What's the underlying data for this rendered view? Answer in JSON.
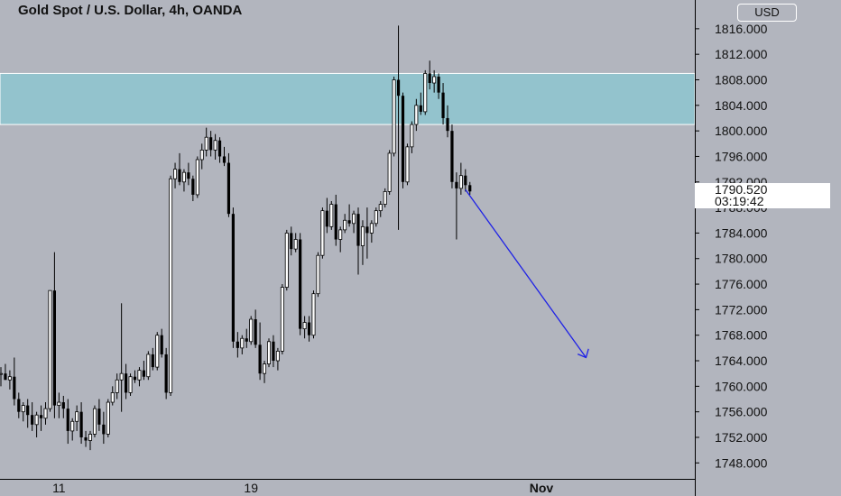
{
  "header": {
    "title": "Gold Spot / U.S. Dollar, 4h, OANDA",
    "currency_button": "USD"
  },
  "last_price": {
    "value": "1790.520",
    "countdown": "03:19:42"
  },
  "colors": {
    "background": "#b2b5be",
    "zone": "#93c3cd",
    "projection": "#1f22e6",
    "candle": "#000000"
  },
  "chart_data": {
    "type": "candlestick",
    "title": "Gold Spot / U.S. Dollar, 4h, OANDA",
    "ylim": [
      1745.5,
      1820.5
    ],
    "y_ticks": [
      "1816.000",
      "1812.000",
      "1808.000",
      "1804.000",
      "1800.000",
      "1796.000",
      "1792.000",
      "1788.000",
      "1784.000",
      "1780.000",
      "1776.000",
      "1772.000",
      "1768.000",
      "1764.000",
      "1760.000",
      "1756.000",
      "1752.000",
      "1748.000"
    ],
    "x_ticks": [
      {
        "label": "11",
        "index": 13
      },
      {
        "label": "19",
        "index": 56
      },
      {
        "label": "Nov",
        "index": 121
      }
    ],
    "resistance_zone": {
      "top": 1809.0,
      "bottom": 1801.0
    },
    "projection": {
      "from": {
        "index": 104,
        "price": 1790.8
      },
      "to": {
        "index": 131,
        "price": 1764.5
      }
    },
    "last_price": 1790.52,
    "ohlc": [
      [
        1762.0,
        1763.0,
        1760.0,
        1762.0
      ],
      [
        1762.0,
        1763.5,
        1761.0,
        1761.0
      ],
      [
        1761.0,
        1762.5,
        1759.5,
        1761.5
      ],
      [
        1761.5,
        1764.5,
        1757.0,
        1758.0
      ],
      [
        1758.0,
        1759.0,
        1755.0,
        1756.0
      ],
      [
        1756.0,
        1757.5,
        1754.5,
        1757.0
      ],
      [
        1757.0,
        1758.0,
        1753.5,
        1755.5
      ],
      [
        1755.5,
        1757.5,
        1753.0,
        1754.0
      ],
      [
        1754.0,
        1756.0,
        1752.0,
        1755.5
      ],
      [
        1755.5,
        1757.0,
        1753.0,
        1755.0
      ],
      [
        1755.0,
        1757.5,
        1754.0,
        1756.5
      ],
      [
        1756.5,
        1775.0,
        1756.0,
        1775.0
      ],
      [
        1775.0,
        1781.0,
        1755.0,
        1757.0
      ],
      [
        1757.0,
        1759.0,
        1755.0,
        1757.5
      ],
      [
        1757.5,
        1758.5,
        1755.0,
        1756.5
      ],
      [
        1756.5,
        1758.0,
        1751.0,
        1753.0
      ],
      [
        1753.0,
        1755.0,
        1751.5,
        1754.5
      ],
      [
        1754.5,
        1757.0,
        1753.0,
        1756.0
      ],
      [
        1756.0,
        1757.5,
        1751.0,
        1752.0
      ],
      [
        1752.0,
        1753.0,
        1750.5,
        1751.5
      ],
      [
        1751.5,
        1753.0,
        1750.0,
        1752.5
      ],
      [
        1752.5,
        1757.0,
        1752.0,
        1756.5
      ],
      [
        1756.5,
        1758.0,
        1753.0,
        1754.0
      ],
      [
        1754.0,
        1756.0,
        1751.0,
        1752.5
      ],
      [
        1752.5,
        1758.0,
        1752.0,
        1757.5
      ],
      [
        1757.5,
        1760.0,
        1757.0,
        1759.0
      ],
      [
        1759.0,
        1762.0,
        1758.0,
        1761.0
      ],
      [
        1761.0,
        1773.0,
        1756.0,
        1762.0
      ],
      [
        1762.0,
        1763.5,
        1758.0,
        1759.0
      ],
      [
        1759.0,
        1762.0,
        1758.5,
        1761.5
      ],
      [
        1761.5,
        1762.5,
        1760.5,
        1761.0
      ],
      [
        1761.0,
        1763.0,
        1760.0,
        1762.5
      ],
      [
        1762.5,
        1764.0,
        1761.0,
        1761.5
      ],
      [
        1761.5,
        1765.5,
        1761.0,
        1765.0
      ],
      [
        1765.0,
        1766.0,
        1762.5,
        1763.0
      ],
      [
        1763.0,
        1768.5,
        1762.5,
        1768.0
      ],
      [
        1768.0,
        1769.0,
        1764.5,
        1765.0
      ],
      [
        1765.0,
        1766.0,
        1758.0,
        1759.0
      ],
      [
        1759.0,
        1793.0,
        1758.5,
        1792.5
      ],
      [
        1792.5,
        1795.0,
        1791.0,
        1794.0
      ],
      [
        1794.0,
        1796.5,
        1791.5,
        1792.0
      ],
      [
        1792.0,
        1794.0,
        1790.5,
        1793.5
      ],
      [
        1793.5,
        1795.0,
        1791.5,
        1792.5
      ],
      [
        1792.5,
        1793.0,
        1789.0,
        1790.0
      ],
      [
        1790.0,
        1796.0,
        1789.5,
        1795.5
      ],
      [
        1795.5,
        1798.0,
        1794.0,
        1797.0
      ],
      [
        1797.0,
        1800.5,
        1796.0,
        1799.0
      ],
      [
        1799.0,
        1800.0,
        1796.0,
        1797.0
      ],
      [
        1797.0,
        1799.5,
        1795.5,
        1798.5
      ],
      [
        1798.5,
        1799.0,
        1795.0,
        1796.0
      ],
      [
        1796.0,
        1797.5,
        1794.5,
        1795.0
      ],
      [
        1795.0,
        1796.5,
        1786.5,
        1787.0
      ],
      [
        1787.0,
        1788.0,
        1766.0,
        1767.0
      ],
      [
        1767.0,
        1768.5,
        1764.5,
        1766.0
      ],
      [
        1766.0,
        1768.0,
        1765.0,
        1767.5
      ],
      [
        1767.5,
        1769.0,
        1766.0,
        1767.0
      ],
      [
        1767.0,
        1771.0,
        1766.5,
        1770.5
      ],
      [
        1770.5,
        1772.0,
        1766.0,
        1766.5
      ],
      [
        1766.5,
        1770.0,
        1761.0,
        1762.0
      ],
      [
        1762.0,
        1764.0,
        1760.5,
        1763.5
      ],
      [
        1763.5,
        1767.5,
        1763.0,
        1767.0
      ],
      [
        1767.0,
        1768.0,
        1763.0,
        1764.0
      ],
      [
        1764.0,
        1766.0,
        1762.5,
        1765.5
      ],
      [
        1765.5,
        1776.0,
        1765.0,
        1775.5
      ],
      [
        1775.5,
        1784.5,
        1775.0,
        1784.0
      ],
      [
        1784.0,
        1785.0,
        1780.5,
        1781.5
      ],
      [
        1781.5,
        1784.0,
        1781.0,
        1783.0
      ],
      [
        1783.0,
        1784.0,
        1768.0,
        1769.0
      ],
      [
        1769.0,
        1771.0,
        1767.5,
        1770.0
      ],
      [
        1770.0,
        1771.0,
        1767.0,
        1768.0
      ],
      [
        1768.0,
        1775.0,
        1767.5,
        1774.5
      ],
      [
        1774.5,
        1781.0,
        1774.0,
        1780.5
      ],
      [
        1780.5,
        1788.0,
        1780.0,
        1787.5
      ],
      [
        1787.5,
        1789.5,
        1784.0,
        1785.0
      ],
      [
        1785.0,
        1789.0,
        1784.5,
        1788.5
      ],
      [
        1788.5,
        1790.0,
        1782.0,
        1783.0
      ],
      [
        1783.0,
        1785.0,
        1781.0,
        1784.5
      ],
      [
        1784.5,
        1787.0,
        1784.0,
        1786.0
      ],
      [
        1786.0,
        1788.5,
        1785.0,
        1785.5
      ],
      [
        1785.5,
        1787.5,
        1784.0,
        1787.0
      ],
      [
        1787.0,
        1788.0,
        1777.5,
        1782.0
      ],
      [
        1782.0,
        1786.0,
        1779.0,
        1785.0
      ],
      [
        1785.0,
        1788.0,
        1780.0,
        1784.0
      ],
      [
        1784.0,
        1786.0,
        1782.5,
        1785.5
      ],
      [
        1785.5,
        1788.0,
        1785.0,
        1787.5
      ],
      [
        1787.5,
        1789.0,
        1786.5,
        1788.5
      ],
      [
        1788.5,
        1791.0,
        1788.0,
        1790.5
      ],
      [
        1790.5,
        1797.0,
        1790.0,
        1796.5
      ],
      [
        1796.5,
        1808.5,
        1796.0,
        1808.0
      ],
      [
        1808.0,
        1816.5,
        1784.5,
        1805.5
      ],
      [
        1805.5,
        1806.0,
        1791.0,
        1792.0
      ],
      [
        1792.0,
        1798.0,
        1791.5,
        1797.5
      ],
      [
        1797.5,
        1801.5,
        1796.5,
        1801.0
      ],
      [
        1801.0,
        1805.0,
        1800.0,
        1804.0
      ],
      [
        1804.0,
        1806.0,
        1802.5,
        1803.0
      ],
      [
        1803.0,
        1809.5,
        1802.5,
        1809.0
      ],
      [
        1809.0,
        1811.0,
        1806.5,
        1807.5
      ],
      [
        1807.5,
        1809.5,
        1806.0,
        1808.5
      ],
      [
        1808.5,
        1809.0,
        1805.0,
        1806.0
      ],
      [
        1806.0,
        1807.5,
        1801.0,
        1802.0
      ],
      [
        1802.0,
        1804.0,
        1799.0,
        1800.0
      ],
      [
        1800.0,
        1801.0,
        1791.0,
        1792.0
      ],
      [
        1792.0,
        1793.5,
        1783.0,
        1791.0
      ],
      [
        1791.0,
        1795.0,
        1790.0,
        1793.0
      ],
      [
        1793.0,
        1794.0,
        1790.5,
        1791.5
      ],
      [
        1791.5,
        1792.0,
        1790.0,
        1790.52
      ]
    ]
  }
}
